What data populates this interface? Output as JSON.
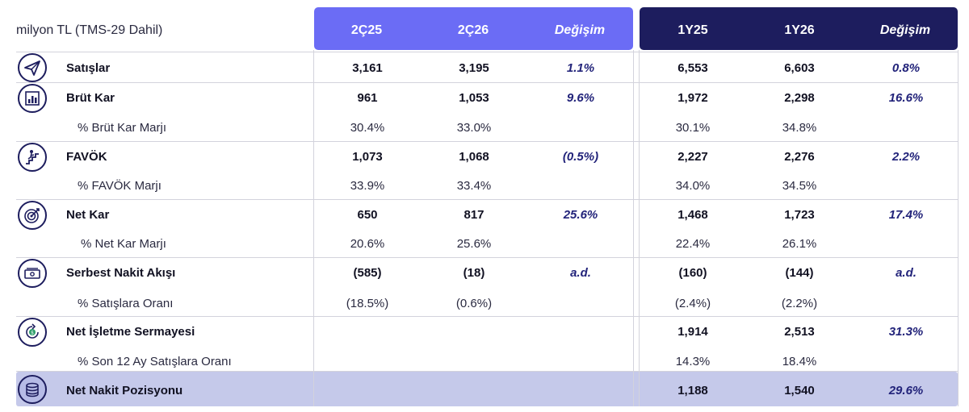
{
  "unit_label": "milyon TL (TMS-29 Dahil)",
  "headers": {
    "q1": "2Ç25",
    "q2": "2Ç26",
    "q_change": "Değişim",
    "y1": "1Y25",
    "y2": "1Y26",
    "y_change": "Değişim"
  },
  "rows": {
    "sales": {
      "label": "Satışlar",
      "q1": "3,161",
      "q2": "3,195",
      "qchg": "1.1%",
      "y1": "6,553",
      "y2": "6,603",
      "ychg": "0.8%"
    },
    "gross": {
      "label": "Brüt Kar",
      "q1": "961",
      "q2": "1,053",
      "qchg": "9.6%",
      "y1": "1,972",
      "y2": "2,298",
      "ychg": "16.6%"
    },
    "gross_margin": {
      "label": "% Brüt Kar Marjı",
      "q1": "30.4%",
      "q2": "33.0%",
      "y1": "30.1%",
      "y2": "34.8%"
    },
    "ebitda": {
      "label": "FAVÖK",
      "q1": "1,073",
      "q2": "1,068",
      "qchg": "(0.5%)",
      "y1": "2,227",
      "y2": "2,276",
      "ychg": "2.2%"
    },
    "ebitda_margin": {
      "label": "% FAVÖK Marjı",
      "q1": "33.9%",
      "q2": "33.4%",
      "y1": "34.0%",
      "y2": "34.5%"
    },
    "net": {
      "label": "Net Kar",
      "q1": "650",
      "q2": "817",
      "qchg": "25.6%",
      "y1": "1,468",
      "y2": "1,723",
      "ychg": "17.4%"
    },
    "net_margin": {
      "label": "% Net Kar Marjı",
      "q1": "20.6%",
      "q2": "25.6%",
      "y1": "22.4%",
      "y2": "26.1%"
    },
    "fcf": {
      "label": "Serbest Nakit Akışı",
      "q1": "(585)",
      "q2": "(18)",
      "qchg": "a.d.",
      "y1": "(160)",
      "y2": "(144)",
      "ychg": "a.d."
    },
    "fcf_ratio": {
      "label": "% Satışlara Oranı",
      "q1": "(18.5%)",
      "q2": "(0.6%)",
      "y1": "(2.4%)",
      "y2": "(2.2%)"
    },
    "nwc": {
      "label": "Net İşletme Sermayesi",
      "y1": "1,914",
      "y2": "2,513",
      "ychg": "31.3%"
    },
    "nwc_ratio": {
      "label": "% Son 12 Ay Satışlara Oranı",
      "y1": "14.3%",
      "y2": "18.4%"
    },
    "net_cash": {
      "label": "Net Nakit Pozisyonu",
      "y1": "1,188",
      "y2": "1,540",
      "ychg": "29.6%"
    }
  },
  "icons": [
    "paper-plane-icon",
    "bar-chart-icon",
    "climbing-person-icon",
    "target-icon",
    "cash-icon",
    "coin-cycle-icon",
    "coin-stack-icon"
  ],
  "colors": {
    "header_quarter": "#6b6cf5",
    "header_year": "#1d1d5e",
    "highlight_row": "#c5c9ea",
    "change_text": "#22237a"
  }
}
